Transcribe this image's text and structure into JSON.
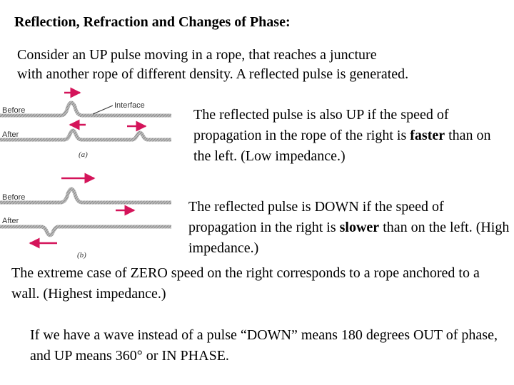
{
  "title": "Reflection, Refraction and Changes of Phase:",
  "intro": {
    "line1": "Consider an UP pulse moving in a rope, that reaches a juncture",
    "line2": "with another rope of different density. A reflected pulse is generated."
  },
  "figure": {
    "before_label": "Before",
    "after_label": "After",
    "interface_label": "Interface",
    "panel_a_label": "(a)",
    "panel_b_label": "(b)",
    "arrow_color": "#d4145a",
    "rope_color": "#999999"
  },
  "para_a": {
    "text1": "The reflected pulse is also UP if the speed of propagation in the rope of the right is ",
    "emph": "faster",
    "text2": " than on the left. (Low impedance.)"
  },
  "para_b": {
    "text1": "The reflected pulse is DOWN if the speed of propagation in the right is ",
    "emph": "slower",
    "text2": " than on the left. (High impedance.)"
  },
  "para_wall": "The extreme case of ZERO speed on the right corresponds to a rope anchored to a wall. (Highest impedance.)",
  "para_wave": "If we have a wave instead of a pulse “DOWN” means 180 degrees OUT of phase, and UP means 360° or IN PHASE."
}
